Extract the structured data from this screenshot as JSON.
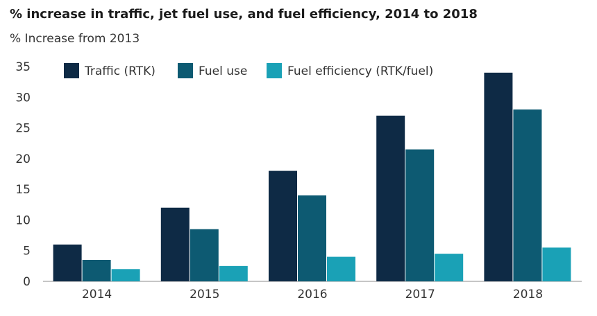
{
  "chart_data": {
    "type": "bar",
    "title": "% increase in traffic, jet fuel use, and fuel efficiency, 2014 to 2018",
    "subtitle": "% Increase from 2013",
    "xlabel": "",
    "ylabel": "",
    "categories": [
      "2014",
      "2015",
      "2016",
      "2017",
      "2018"
    ],
    "series": [
      {
        "name": "Traffic (RTK)",
        "values": [
          6,
          12,
          18,
          27,
          34
        ],
        "color": "#0e2a45"
      },
      {
        "name": "Fuel use",
        "values": [
          3.5,
          8.5,
          14,
          21.5,
          28
        ],
        "color": "#0d5a72"
      },
      {
        "name": "Fuel efficiency (RTK/fuel)",
        "values": [
          2,
          2.5,
          4,
          4.5,
          5.5
        ],
        "color": "#1aa1b6"
      }
    ],
    "ylim": [
      0,
      35
    ],
    "yticks": [
      0,
      5,
      10,
      15,
      20,
      25,
      30,
      35
    ],
    "grid": false,
    "legend": "top"
  }
}
